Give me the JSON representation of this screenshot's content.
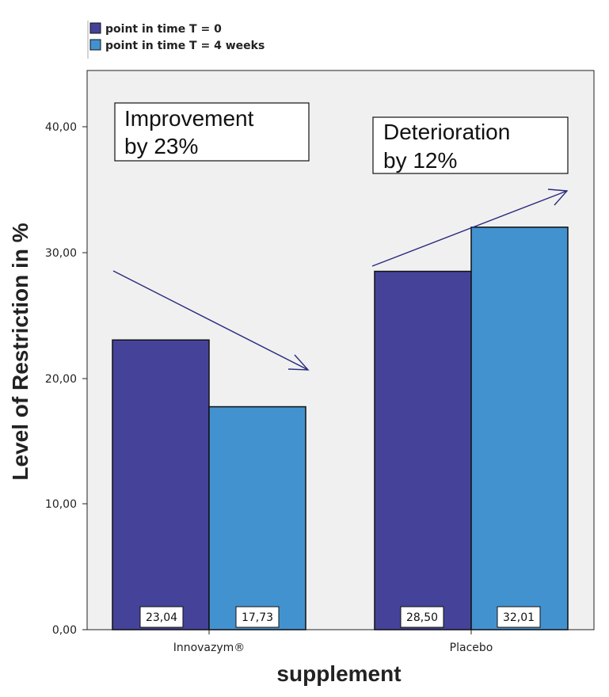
{
  "chart_data": {
    "type": "bar",
    "title": "",
    "xlabel": "supplement",
    "ylabel": "Level of Restriction in %",
    "categories": [
      "Innovazym®",
      "Placebo"
    ],
    "series": [
      {
        "name": "point in time T = 0",
        "values": [
          23.04,
          28.5
        ],
        "labels": [
          "23,04",
          "28,50"
        ]
      },
      {
        "name": "point in time T = 4 weeks",
        "values": [
          17.73,
          32.01
        ],
        "labels": [
          "17,73",
          "32,01"
        ]
      }
    ],
    "ylim": [
      0,
      45
    ],
    "yticks": [
      0,
      10,
      20,
      30,
      40
    ],
    "ytick_labels": [
      "0,00",
      "10,00",
      "20,00",
      "30,00",
      "40,00"
    ],
    "legend_position": "top-left",
    "annotations": [
      {
        "line1": "Improvement",
        "line2": "by 23%",
        "from_value": 28.5,
        "to_value": 20.5,
        "group": 0
      },
      {
        "line1": "Deterioration",
        "line2": "by 12%",
        "from_value": 29.0,
        "to_value": 35.0,
        "group": 1
      }
    ],
    "colors": {
      "series0": "#444399",
      "series1": "#4392d0",
      "plot_bg": "#f0f0f0",
      "arrow": "#2a2a80",
      "border": "#222222"
    }
  }
}
